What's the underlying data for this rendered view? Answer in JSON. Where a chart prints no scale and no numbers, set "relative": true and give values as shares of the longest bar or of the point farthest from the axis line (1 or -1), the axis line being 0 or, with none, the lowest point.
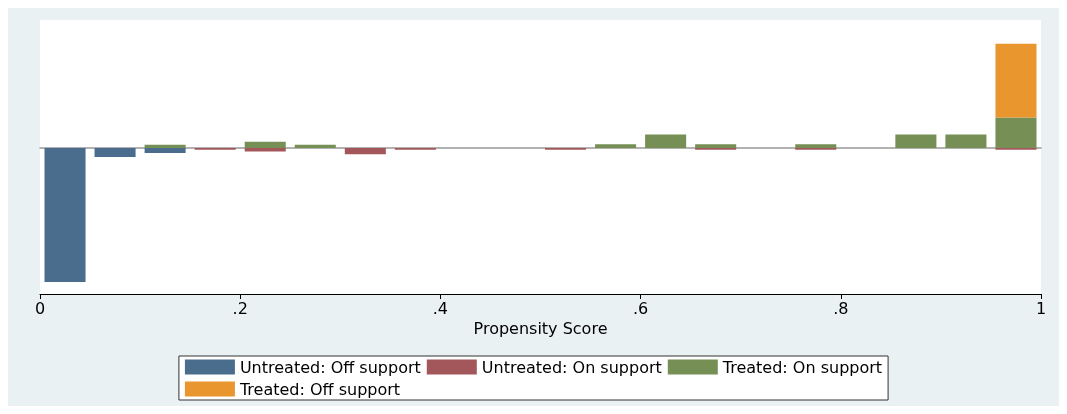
{
  "chart_data": {
    "type": "bar",
    "xlabel": "Propensity Score",
    "relative": true,
    "stacked": true,
    "x": [
      0.025,
      0.075,
      0.125,
      0.175,
      0.225,
      0.275,
      0.325,
      0.375,
      0.425,
      0.475,
      0.525,
      0.575,
      0.625,
      0.675,
      0.725,
      0.775,
      0.825,
      0.875,
      0.925,
      0.975
    ],
    "series": [
      {
        "name": "Untreated: Off support",
        "color": "#4a6d8e",
        "values": [
          -1,
          -0.067,
          -0.037,
          null,
          null,
          null,
          null,
          null,
          null,
          null,
          null,
          null,
          null,
          null,
          null,
          null,
          null,
          null,
          null,
          null
        ]
      },
      {
        "name": "Untreated: On support",
        "color": "#a3575b",
        "values": [
          null,
          null,
          null,
          -0.013,
          -0.027,
          null,
          -0.047,
          -0.013,
          null,
          null,
          -0.013,
          null,
          null,
          -0.013,
          null,
          -0.013,
          null,
          null,
          null,
          -0.013
        ]
      },
      {
        "name": "Treated: On support",
        "color": "#758f55",
        "values": [
          null,
          null,
          0.023,
          null,
          0.047,
          0.023,
          null,
          null,
          null,
          null,
          null,
          0.027,
          0.1,
          0.027,
          null,
          0.027,
          null,
          0.1,
          0.1,
          0.226
        ]
      },
      {
        "name": "Treated: Off support",
        "color": "#e9962f",
        "values": [
          null,
          null,
          null,
          null,
          null,
          null,
          null,
          null,
          null,
          null,
          null,
          null,
          null,
          null,
          null,
          null,
          null,
          null,
          null,
          0.55
        ]
      }
    ],
    "xlim": [
      0,
      1
    ],
    "xticks": [
      0,
      {
        "value": 0.2,
        "label": ".2"
      },
      {
        "value": 0.4,
        "label": ".4"
      },
      {
        "value": 0.6,
        "label": ".6"
      },
      {
        "value": 0.8,
        "label": ".8"
      },
      1
    ],
    "grid": false,
    "legend": "bottom"
  }
}
